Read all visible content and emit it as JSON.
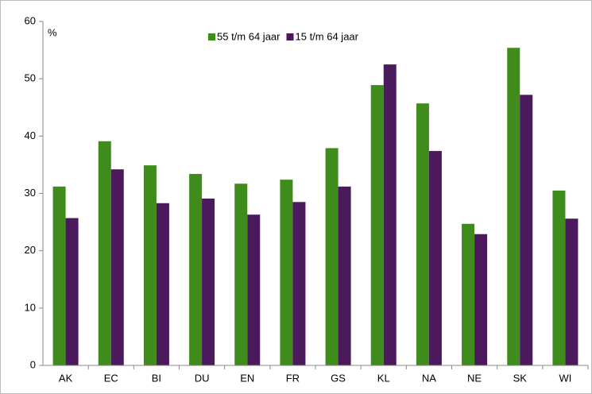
{
  "chart_data": {
    "type": "bar",
    "y_label": "%",
    "categories": [
      "AK",
      "EC",
      "BI",
      "DU",
      "EN",
      "FR",
      "GS",
      "KL",
      "NA",
      "NE",
      "SK",
      "WI"
    ],
    "series": [
      {
        "name": "55 t/m 64 jaar",
        "color": "#3f8c1d",
        "values": [
          31.2,
          39.1,
          34.9,
          33.4,
          31.7,
          32.4,
          37.9,
          48.9,
          45.7,
          24.7,
          55.4,
          30.5
        ]
      },
      {
        "name": "15 t/m 64 jaar",
        "color": "#4a1a5c",
        "values": [
          25.7,
          34.2,
          28.3,
          29.1,
          26.3,
          28.5,
          31.2,
          52.5,
          37.4,
          22.9,
          47.2,
          25.6
        ]
      }
    ],
    "ylim": [
      0,
      60
    ],
    "yticks": [
      0,
      10,
      20,
      30,
      40,
      50,
      60
    ],
    "legend": "top",
    "grid": false
  }
}
